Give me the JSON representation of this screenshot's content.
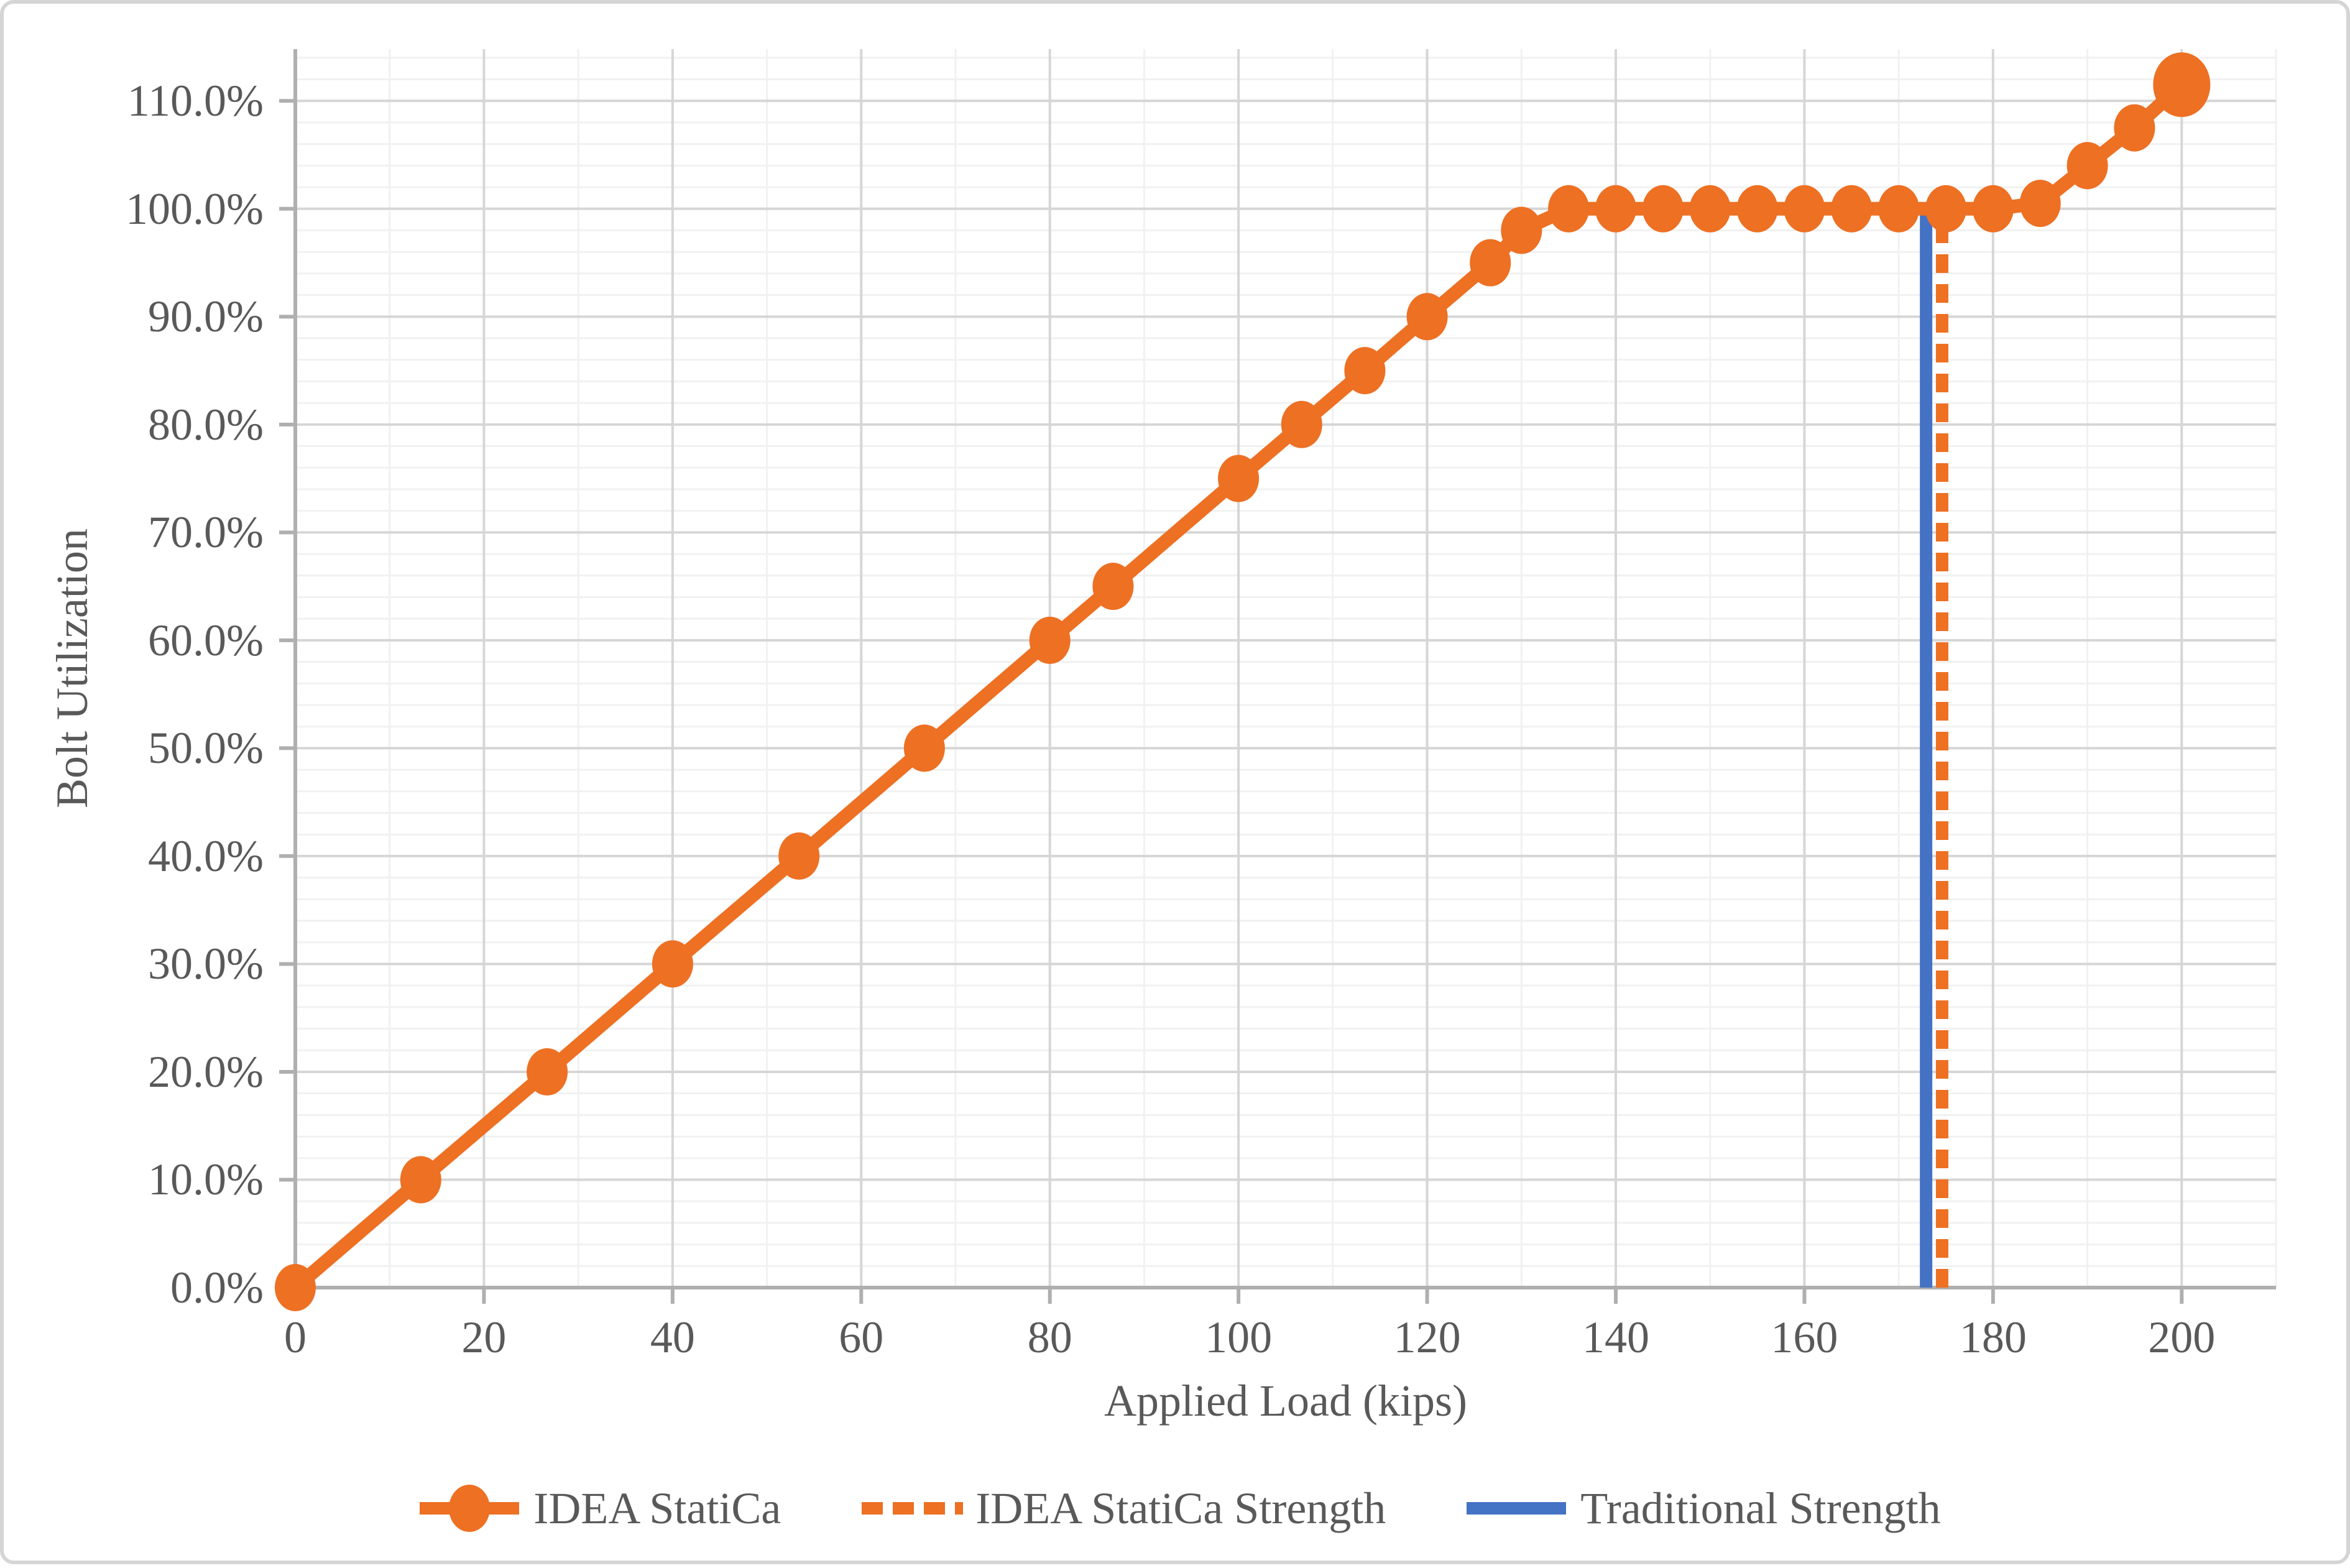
{
  "colors": {
    "orange": "#ED7023",
    "blue": "#4472C4",
    "text": "#595959",
    "grid_major": "#D6D6D6",
    "grid_minor": "#F1F1F1",
    "axis": "#AFAFAF",
    "background": "#FFFFFF",
    "border": "#D5D5D5"
  },
  "chart_data": {
    "type": "line",
    "title": "",
    "xlabel": "Applied Load (kips)",
    "ylabel": "Bolt Utilization",
    "xlim": [
      0,
      210
    ],
    "ylim": [
      0,
      114.8
    ],
    "grid": true,
    "legend_position": "bottom",
    "x_ticks": [
      0,
      20,
      40,
      60,
      80,
      100,
      120,
      140,
      160,
      180,
      200
    ],
    "x_tick_labels": [
      "0",
      "20",
      "40",
      "60",
      "80",
      "100",
      "120",
      "140",
      "160",
      "180",
      "200"
    ],
    "x_minor_step": 10,
    "y_ticks": [
      0,
      10,
      20,
      30,
      40,
      50,
      60,
      70,
      80,
      90,
      100,
      110
    ],
    "y_tick_labels": [
      "0.0%",
      "10.0%",
      "20.0%",
      "30.0%",
      "40.0%",
      "50.0%",
      "60.0%",
      "70.0%",
      "80.0%",
      "90.0%",
      "100.0%",
      "110.0%"
    ],
    "y_minor_step": 2,
    "series": [
      {
        "name": "IDEA StatiCa",
        "type": "line",
        "marker": "circle",
        "color": "#ED7023",
        "x": [
          0,
          13.3,
          26.7,
          40,
          53.4,
          66.7,
          80,
          86.7,
          100,
          106.7,
          113.4,
          120,
          126.7,
          130,
          135,
          140,
          145,
          150,
          155,
          160,
          165,
          170,
          175,
          180,
          185,
          190,
          195,
          200
        ],
        "y": [
          0,
          10,
          20,
          30,
          40,
          50,
          60,
          65,
          75,
          80,
          85,
          90,
          95,
          98,
          100,
          100,
          100,
          100,
          100,
          100,
          100,
          100,
          100,
          100,
          100.5,
          104,
          107.5,
          111.5
        ]
      },
      {
        "name": "IDEA StatiCa Strength",
        "type": "vline",
        "style": "dashed",
        "color": "#ED7023",
        "x": 174.6,
        "y_from": 0,
        "y_to": 100
      },
      {
        "name": "Traditional Strength",
        "type": "vline",
        "style": "solid",
        "color": "#4472C4",
        "x": 172.9,
        "y_from": 0,
        "y_to": 100
      }
    ]
  }
}
